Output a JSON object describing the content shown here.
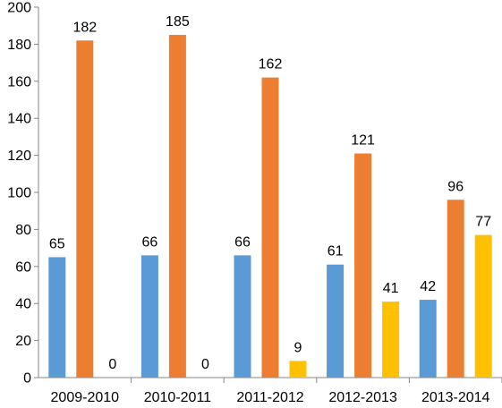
{
  "chart_data": {
    "type": "bar",
    "categories": [
      "2009-2010",
      "2010-2011",
      "2011-2012",
      "2012-2013",
      "2013-2014"
    ],
    "series": [
      {
        "values": [
          65,
          66,
          66,
          61,
          42
        ],
        "color": "#5b9bd5"
      },
      {
        "values": [
          182,
          185,
          162,
          121,
          96
        ],
        "color": "#ed7d31"
      },
      {
        "values": [
          0,
          0,
          9,
          41,
          77
        ],
        "color": "#ffc000"
      }
    ],
    "ylim": [
      0,
      200
    ],
    "yticks": [
      0,
      20,
      40,
      60,
      80,
      100,
      120,
      140,
      160,
      180,
      200
    ],
    "grid": false,
    "title": "",
    "xlabel": "",
    "ylabel": ""
  }
}
